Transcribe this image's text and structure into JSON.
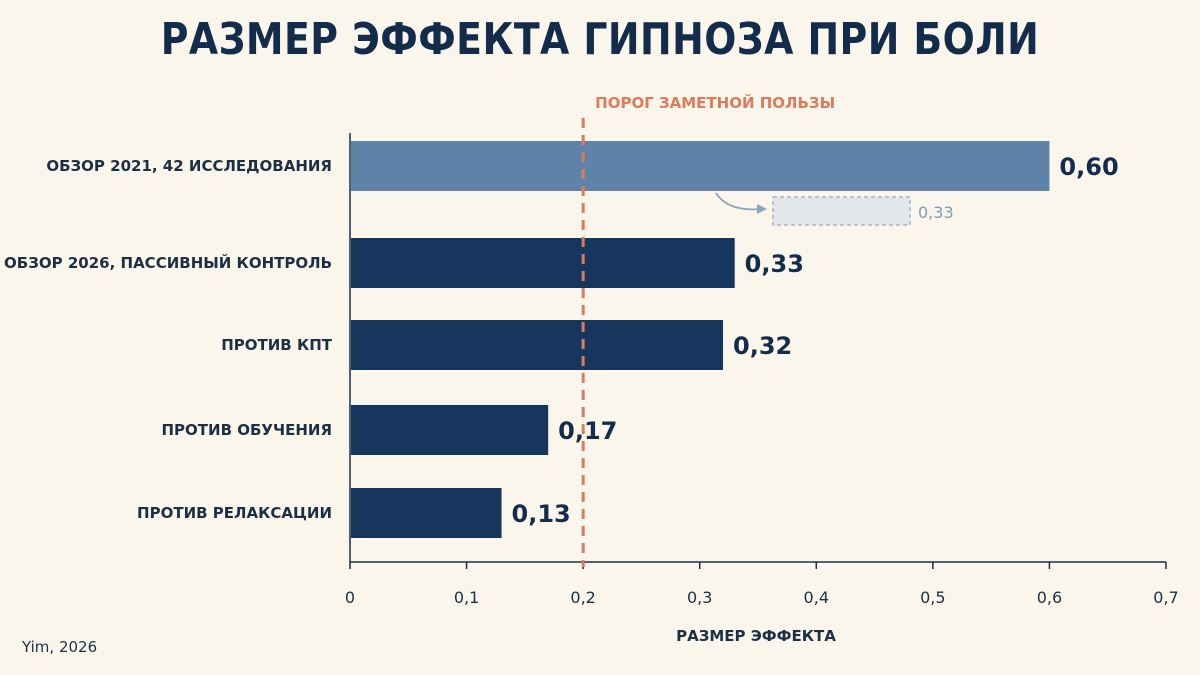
{
  "title": "РАЗМЕР ЭФФЕКТА ГИПНОЗА ПРИ БОЛИ",
  "source": "Yim, 2026",
  "chart_data": {
    "type": "bar",
    "orientation": "horizontal",
    "categories": [
      "ОБЗОР 2021, 42 ИССЛЕДОВАНИЯ",
      "ОБЗОР 2026, ПАССИВНЫЙ КОНТРОЛЬ",
      "ПРОТИВ КПТ",
      "ПРОТИВ ОБУЧЕНИЯ",
      "ПРОТИВ РЕЛАКСАЦИИ"
    ],
    "values": [
      0.6,
      0.33,
      0.32,
      0.17,
      0.13
    ],
    "value_labels": [
      "0,60",
      "0,33",
      "0,32",
      "0,17",
      "0,13"
    ],
    "bar_colors": [
      "#5f83a8",
      "#17365d",
      "#17365d",
      "#17365d",
      "#17365d"
    ],
    "xlabel": "РАЗМЕР ЭФФЕКТА",
    "xlim": [
      0,
      0.7
    ],
    "xticks": [
      0,
      0.1,
      0.2,
      0.3,
      0.4,
      0.5,
      0.6,
      0.7
    ],
    "xtick_labels": [
      "0",
      "0,1",
      "0,2",
      "0,3",
      "0,4",
      "0,5",
      "0,6",
      "0,7"
    ],
    "threshold": {
      "value": 0.2,
      "label": "ПОРОГ ЗАМЕТНОЙ ПОЛЬЗЫ",
      "color": "#e07a5c"
    },
    "annotation": {
      "from_value": 0.6,
      "value": 0.33,
      "label": "0,33"
    },
    "grid": false
  }
}
